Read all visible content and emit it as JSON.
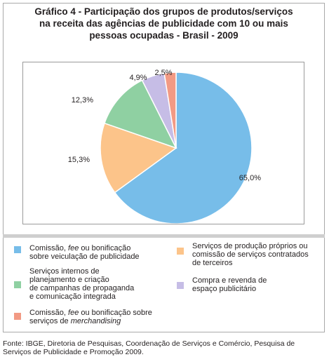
{
  "title": {
    "line1": "Gráfico 4 - Participação dos grupos de produtos/serviços",
    "line2": "na receita das agências de publicidade com 10 ou mais",
    "line3": "pessoas ocupadas - Brasil - 2009"
  },
  "chart_data": {
    "type": "pie",
    "title": "Gráfico 4 - Participação dos grupos de produtos/serviços na receita das agências de publicidade com 10 ou mais pessoas ocupadas - Brasil - 2009",
    "unit": "%",
    "slices": [
      {
        "label": "Comissão, fee ou bonificação sobre veiculação de publicidade",
        "value": 65.0,
        "value_label": "65,0%",
        "color": "#77bde9"
      },
      {
        "label": "Serviços de produção próprios ou comissão de serviços contratados de terceiros",
        "value": 15.3,
        "value_label": "15,3%",
        "color": "#fcc48a"
      },
      {
        "label": "Serviços internos de planejamento e criação de campanhas de propaganda e comunicação integrada",
        "value": 12.3,
        "value_label": "12,3%",
        "color": "#8fd0a2"
      },
      {
        "label": "Compra e revenda de espaço publicitário",
        "value": 4.9,
        "value_label": "4,9%",
        "color": "#c6bde6"
      },
      {
        "label": "Comissão, fee ou bonificação sobre serviços de merchandising",
        "value": 2.5,
        "value_label": "2,5%",
        "color": "#f29a84"
      }
    ],
    "legend_placement": "bottom"
  },
  "legend": {
    "item1": {
      "pre": "Comissão, ",
      "em": "fee",
      "post": " ou bonificação",
      "line2": "sobre veiculação de publicidade"
    },
    "item2": {
      "line1": "Serviços de produção próprios ou",
      "line2": "comissão de serviços contratados",
      "line3": "de terceiros"
    },
    "item3": {
      "line1": "Serviços internos de",
      "line2": "planejamento e criação",
      "line3": "de campanhas de propaganda",
      "line4": "e comunicação integrada"
    },
    "item4": {
      "line1": "Compra e revenda de",
      "line2": "espaço publicitário"
    },
    "item5": {
      "pre": "Comissão, ",
      "em": "fee",
      "post": " ou bonificação sobre",
      "line2a": "serviços de ",
      "line2em": "merchandising"
    }
  },
  "source": {
    "line1": "Fonte: IBGE, Diretoria de Pesquisas, Coordenação de Serviços e Comércio, Pesquisa de",
    "line2": "Serviços de Publicidade e Promoção 2009."
  }
}
